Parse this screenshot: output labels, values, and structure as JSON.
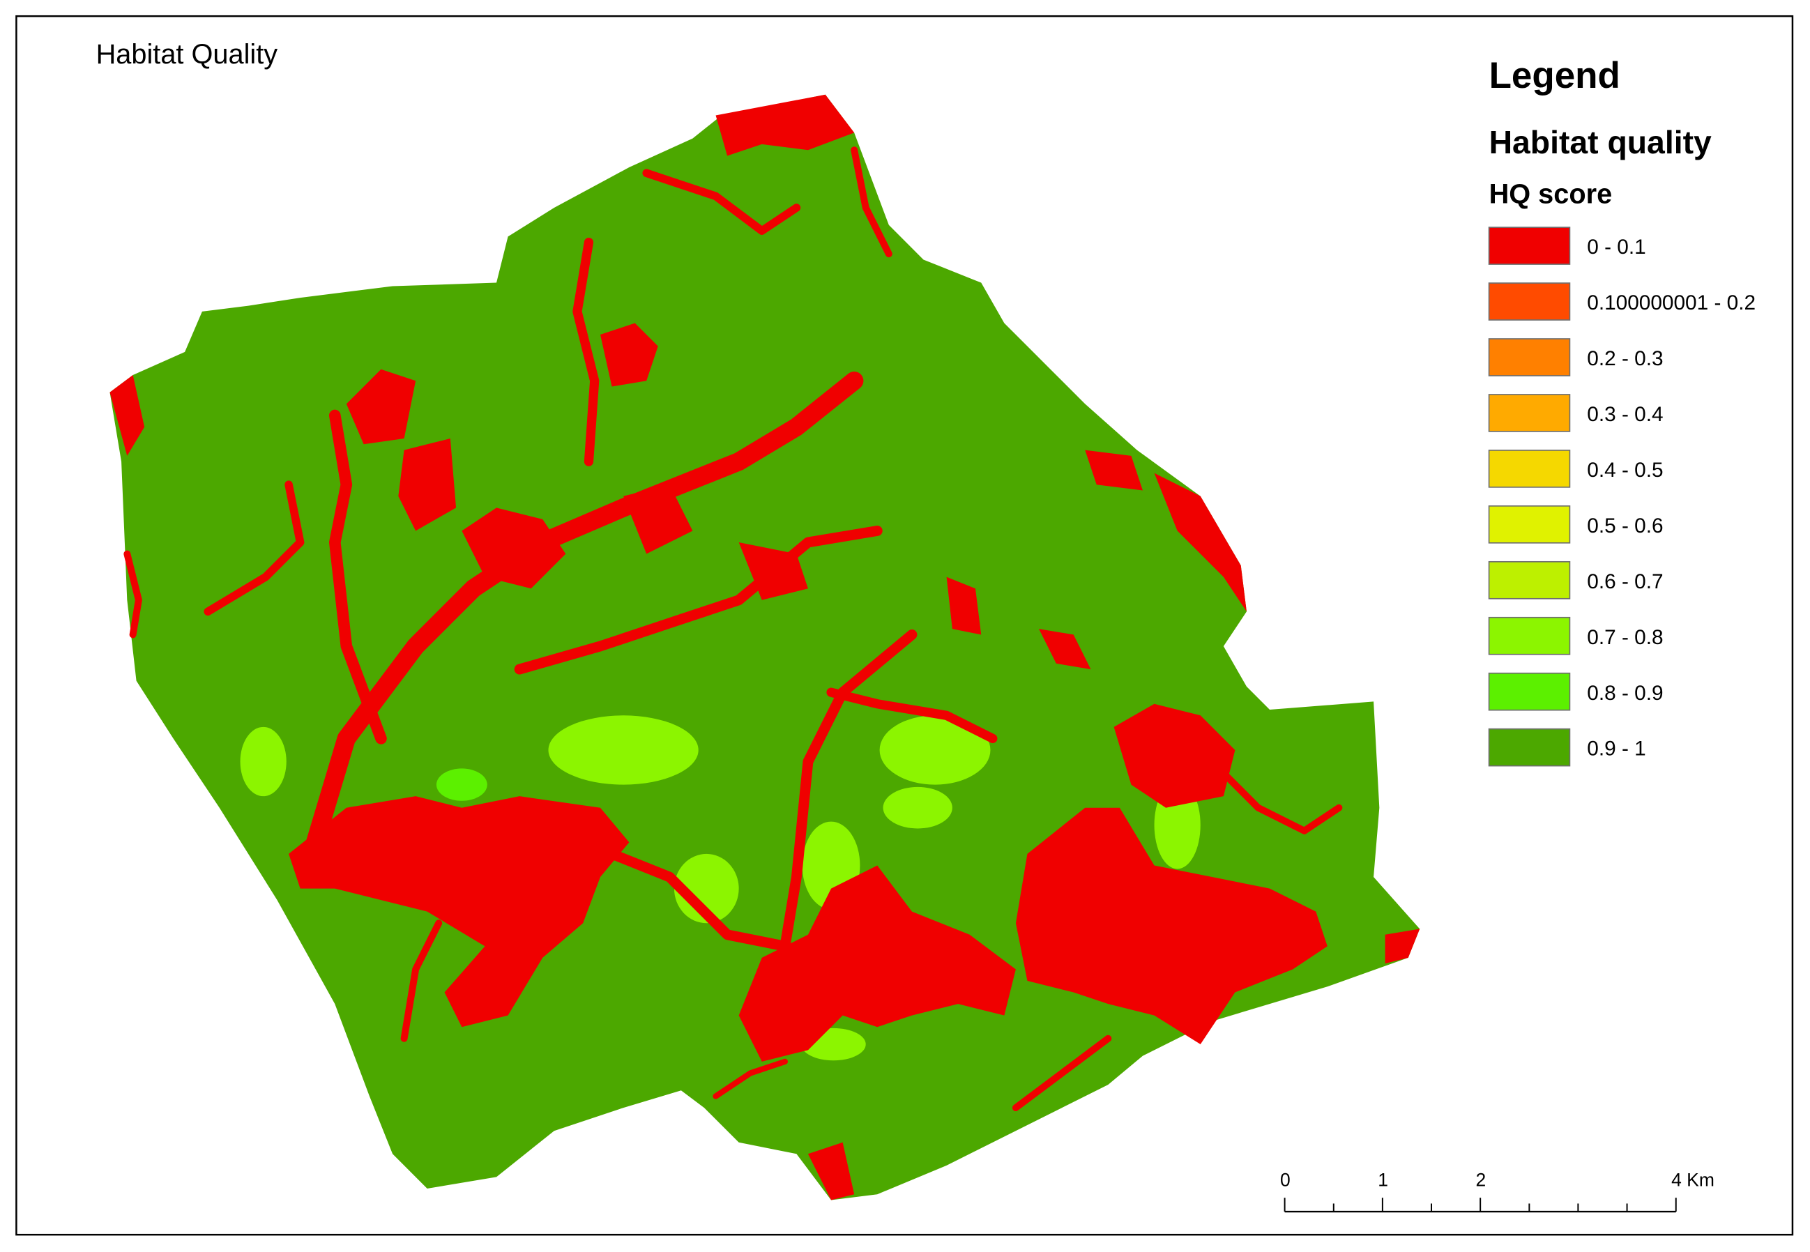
{
  "title": "Habitat Quality",
  "legend": {
    "title": "Legend",
    "subtitle": "Habitat quality",
    "field": "HQ score",
    "classes": [
      {
        "label": "0 - 0.1",
        "color": "#f00000"
      },
      {
        "label": "0.100000001 - 0.2",
        "color": "#ff4b00"
      },
      {
        "label": "0.2 - 0.3",
        "color": "#ff8000"
      },
      {
        "label": "0.3 - 0.4",
        "color": "#ffaa00"
      },
      {
        "label": "0.4 - 0.5",
        "color": "#f5d800"
      },
      {
        "label": "0.5 - 0.6",
        "color": "#e0f200"
      },
      {
        "label": "0.6 - 0.7",
        "color": "#bdf000"
      },
      {
        "label": "0.7 - 0.8",
        "color": "#8cf500"
      },
      {
        "label": "0.8 - 0.9",
        "color": "#5cf000"
      },
      {
        "label": "0.9 - 1",
        "color": "#4ca800"
      }
    ]
  },
  "scale_bar": {
    "ticks": [
      0,
      1,
      2,
      {
        "value": 4,
        "label": "4 Km"
      }
    ]
  }
}
